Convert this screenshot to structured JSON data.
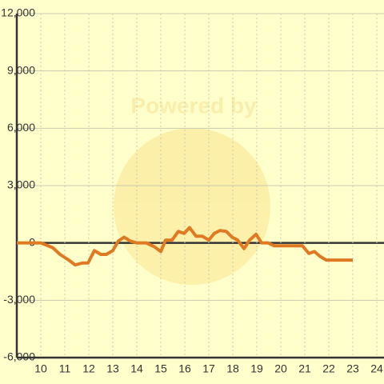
{
  "chart_data": {
    "type": "line",
    "watermark": "Powered by",
    "x": [
      9.0,
      10.0,
      10.5,
      10.8,
      11.17,
      11.43,
      11.73,
      11.97,
      12.23,
      12.5,
      12.73,
      13.0,
      13.23,
      13.47,
      13.73,
      14.0,
      14.4,
      14.73,
      15.0,
      15.2,
      15.47,
      15.73,
      15.97,
      16.2,
      16.47,
      16.73,
      17.0,
      17.23,
      17.47,
      17.73,
      17.97,
      18.2,
      18.47,
      18.7,
      18.97,
      19.2,
      19.47,
      19.73,
      19.97,
      20.23,
      20.5,
      20.9,
      21.17,
      21.4,
      21.63,
      21.9,
      22.23,
      23.0
    ],
    "series": [
      {
        "color": "#e07a22",
        "values": [
          0,
          0,
          -250,
          -600,
          -900,
          -1150,
          -1050,
          -1050,
          -400,
          -600,
          -600,
          -400,
          100,
          300,
          100,
          0,
          0,
          -200,
          -450,
          150,
          150,
          600,
          500,
          800,
          350,
          350,
          150,
          500,
          650,
          600,
          300,
          150,
          -300,
          150,
          450,
          0,
          0,
          -150,
          -150,
          -150,
          -150,
          -150,
          -550,
          -450,
          -700,
          -900,
          -900,
          -900
        ]
      }
    ],
    "xlim": [
      9,
      24.3
    ],
    "xticks": [
      10,
      11,
      12,
      13,
      14,
      15,
      16,
      17,
      18,
      19,
      20,
      21,
      22,
      23,
      24
    ],
    "ylim": [
      -6000,
      12000
    ],
    "yticks": [
      {
        "value": -6000,
        "label": "-6,000"
      },
      {
        "value": -3000,
        "label": "-3,000"
      },
      0,
      {
        "value": 3000,
        "label": "3,000"
      },
      {
        "value": 6000,
        "label": "6,000"
      },
      {
        "value": 9000,
        "label": "9,000"
      },
      {
        "value": 12000,
        "label": "12,000"
      }
    ],
    "grid": true
  }
}
